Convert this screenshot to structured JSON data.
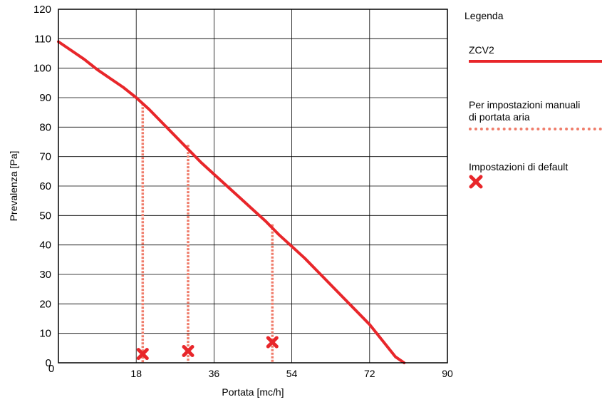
{
  "chart_data": {
    "type": "line",
    "xlabel": "Portata [mc/h]",
    "ylabel": "Prevalenza [Pa]",
    "xlim": [
      0,
      90
    ],
    "ylim": [
      0,
      120
    ],
    "x_ticks": [
      "0",
      "18",
      "36",
      "54",
      "72",
      "90"
    ],
    "y_ticks": [
      "0",
      "10",
      "20",
      "30",
      "40",
      "50",
      "60",
      "70",
      "80",
      "90",
      "100",
      "110",
      "120"
    ],
    "grid": true,
    "series": [
      {
        "name": "ZCV2",
        "style": "solid",
        "color": "#e8262a",
        "x": [
          0,
          3,
          6,
          9,
          12,
          15,
          18,
          21,
          24,
          27,
          30,
          33,
          36,
          39,
          42,
          45,
          48,
          51,
          54,
          57,
          60,
          63,
          66,
          69,
          72,
          75,
          78,
          80
        ],
        "y": [
          109,
          106,
          103,
          99.5,
          96.5,
          93.5,
          90,
          86,
          81.5,
          77,
          72.5,
          68,
          64,
          60,
          56,
          52,
          48,
          43.5,
          39.5,
          35.5,
          31,
          26.5,
          22,
          17.5,
          13,
          7.5,
          2,
          0
        ]
      }
    ],
    "manual_settings": {
      "name": "Per impostazioni manuali di portata aria",
      "style": "dotted",
      "color": "#ef7c6a",
      "x": [
        19.5,
        30,
        49.5
      ],
      "y_top": [
        88,
        74,
        47
      ]
    },
    "default_settings": {
      "name": "Impostazioni di default",
      "marker": "x",
      "color": "#e8262a",
      "x": [
        19.5,
        30,
        49.5
      ],
      "y": [
        3,
        4,
        7
      ]
    }
  },
  "legend": {
    "title": "Legenda",
    "series_label": "ZCV2",
    "manual_label_line1": "Per impostazioni manuali",
    "manual_label_line2": "di portata aria",
    "default_label": "Impostazioni di default"
  }
}
